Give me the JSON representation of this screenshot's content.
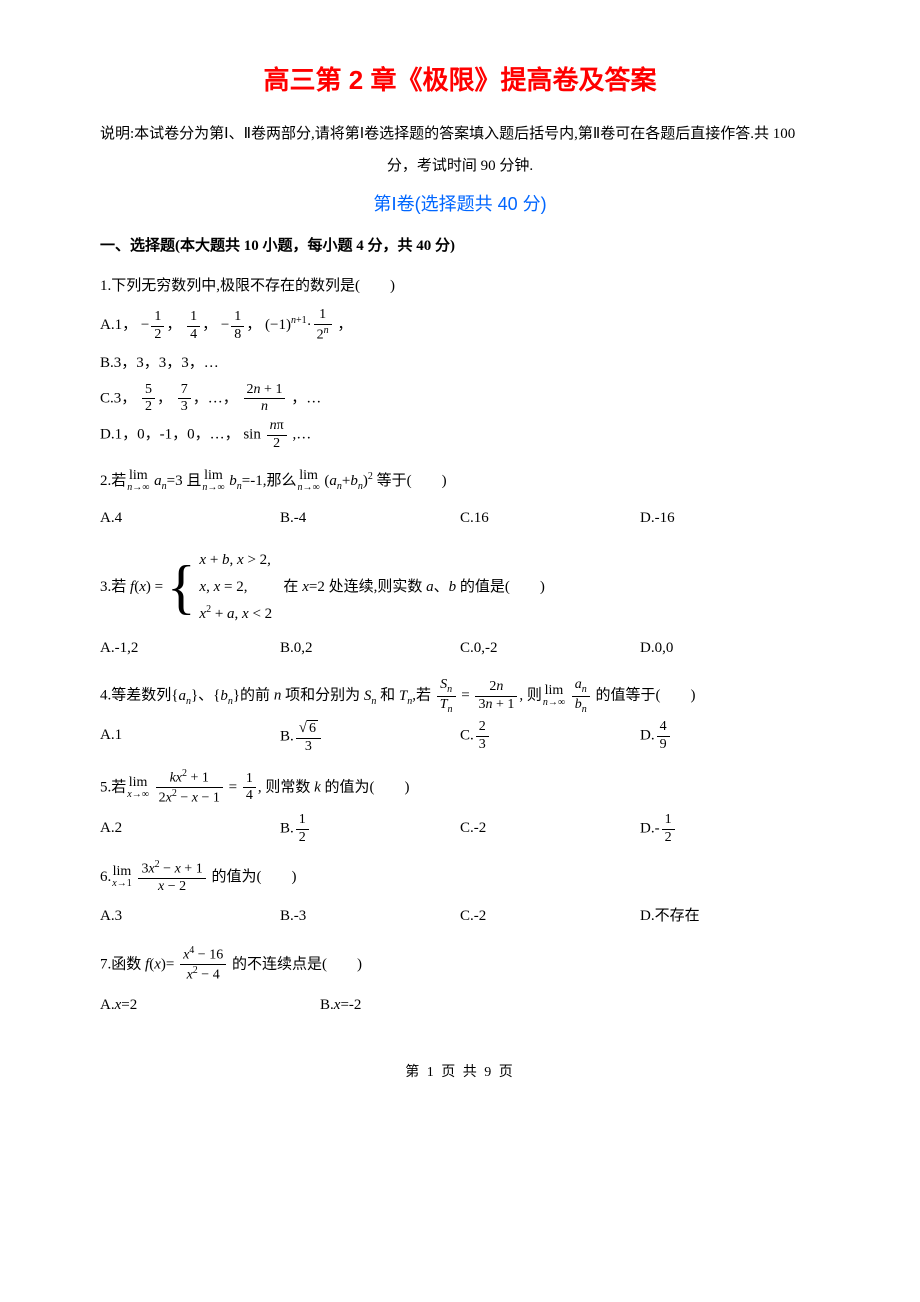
{
  "title": "高三第 2 章《极限》提高卷及答案",
  "description_line1": "说明:本试卷分为第Ⅰ、Ⅱ卷两部分,请将第Ⅰ卷选择题的答案填入题后括号内,第Ⅱ卷可在各题后直接作答.共 100",
  "description_line2": "分，考试时间 90 分钟.",
  "section_title": "第Ⅰ卷(选择题共 40 分)",
  "section_header": "一、选择题(本大题共 10 小题，每小题 4 分，共 40 分)",
  "q1": {
    "text": "1.下列无穷数列中,极限不存在的数列是(　　)",
    "optA_prefix": "A.1，",
    "optA_suffix": "，",
    "optB": "B.3，3，3，3，…",
    "optC_prefix": "C.3，",
    "optC_suffix": "，…",
    "optD_prefix": "D.1，0，-1，0，…，",
    "optD_suffix": ",…"
  },
  "q2": {
    "text_suffix": "等于(　　)",
    "optA": "A.4",
    "optB": "B.-4",
    "optC": "C.16",
    "optD": "D.-16"
  },
  "q3": {
    "text_suffix": "的值是(　　)",
    "optA": "A.-1,2",
    "optB": "B.0,2",
    "optC": "C.0,-2",
    "optD": "D.0,0"
  },
  "q4": {
    "text_suffix": "的值等于(　　)",
    "optA": "A.1",
    "optB_prefix": "B.",
    "optC_prefix": "C.",
    "optD_prefix": "D."
  },
  "q5": {
    "text_suffix": "的值为(　　)",
    "optA": "A.2",
    "optB_prefix": "B.",
    "optC": "C.-2",
    "optD_prefix": "D.-"
  },
  "q6": {
    "text_suffix": "的值为(　　)",
    "optA": "A.3",
    "optB": "B.-3",
    "optC": "C.-2",
    "optD": "D.不存在"
  },
  "q7": {
    "text_suffix": "的不连续点是(　　)",
    "optA": "A.x=2",
    "optB": "B.x=-2"
  },
  "page_number": "第 1 页 共 9 页",
  "colors": {
    "title": "#ff0000",
    "section": "#0066ff",
    "text": "#000000",
    "background": "#ffffff"
  }
}
